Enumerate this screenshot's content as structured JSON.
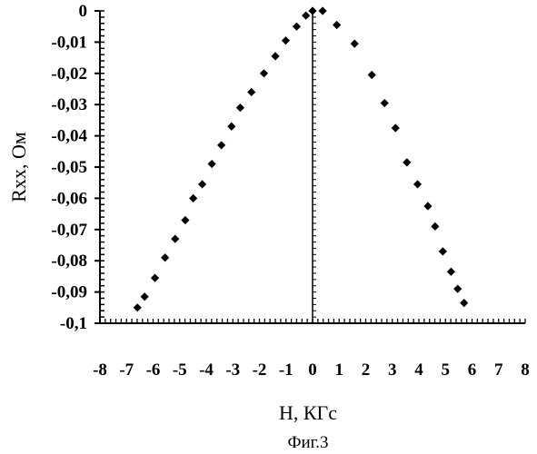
{
  "chart_data": {
    "type": "scatter",
    "xlabel": "H, КГс",
    "ylabel": "Rxx, Ом",
    "caption": "Фиг.3",
    "xlim": [
      -8,
      8
    ],
    "ylim": [
      -0.1,
      0
    ],
    "x_ticks": [
      "-8",
      "-7",
      "-6",
      "-5",
      "-4",
      "-3",
      "-2",
      "-1",
      "0",
      "1",
      "2",
      "3",
      "4",
      "5",
      "6",
      "7",
      "8"
    ],
    "y_ticks": [
      "0",
      "-0,01",
      "-0,02",
      "-0,03",
      "-0,04",
      "-0,05",
      "-0,06",
      "-0,07",
      "-0,08",
      "-0,09",
      "-0,1"
    ],
    "grid": false,
    "marker": "diamond",
    "color": "#000000",
    "points": [
      [
        -6.59,
        -0.095
      ],
      [
        -6.32,
        -0.0915
      ],
      [
        -5.93,
        -0.0855
      ],
      [
        -5.55,
        -0.079
      ],
      [
        -5.17,
        -0.073
      ],
      [
        -4.79,
        -0.067
      ],
      [
        -4.49,
        -0.06
      ],
      [
        -4.15,
        -0.0555
      ],
      [
        -3.79,
        -0.049
      ],
      [
        -3.43,
        -0.043
      ],
      [
        -3.05,
        -0.037
      ],
      [
        -2.72,
        -0.031
      ],
      [
        -2.3,
        -0.026
      ],
      [
        -1.83,
        -0.02
      ],
      [
        -1.4,
        -0.0145
      ],
      [
        -1.01,
        -0.0095
      ],
      [
        -0.6,
        -0.005
      ],
      [
        -0.25,
        -0.0015
      ],
      [
        0,
        0
      ],
      [
        0.38,
        0
      ],
      [
        0.91,
        -0.0045
      ],
      [
        1.58,
        -0.0105
      ],
      [
        2.23,
        -0.0205
      ],
      [
        2.71,
        -0.0295
      ],
      [
        3.12,
        -0.0375
      ],
      [
        3.55,
        -0.0485
      ],
      [
        3.95,
        -0.0555
      ],
      [
        4.34,
        -0.0625
      ],
      [
        4.61,
        -0.069
      ],
      [
        4.9,
        -0.077
      ],
      [
        5.21,
        -0.0835
      ],
      [
        5.46,
        -0.089
      ],
      [
        5.7,
        -0.0935
      ]
    ]
  }
}
